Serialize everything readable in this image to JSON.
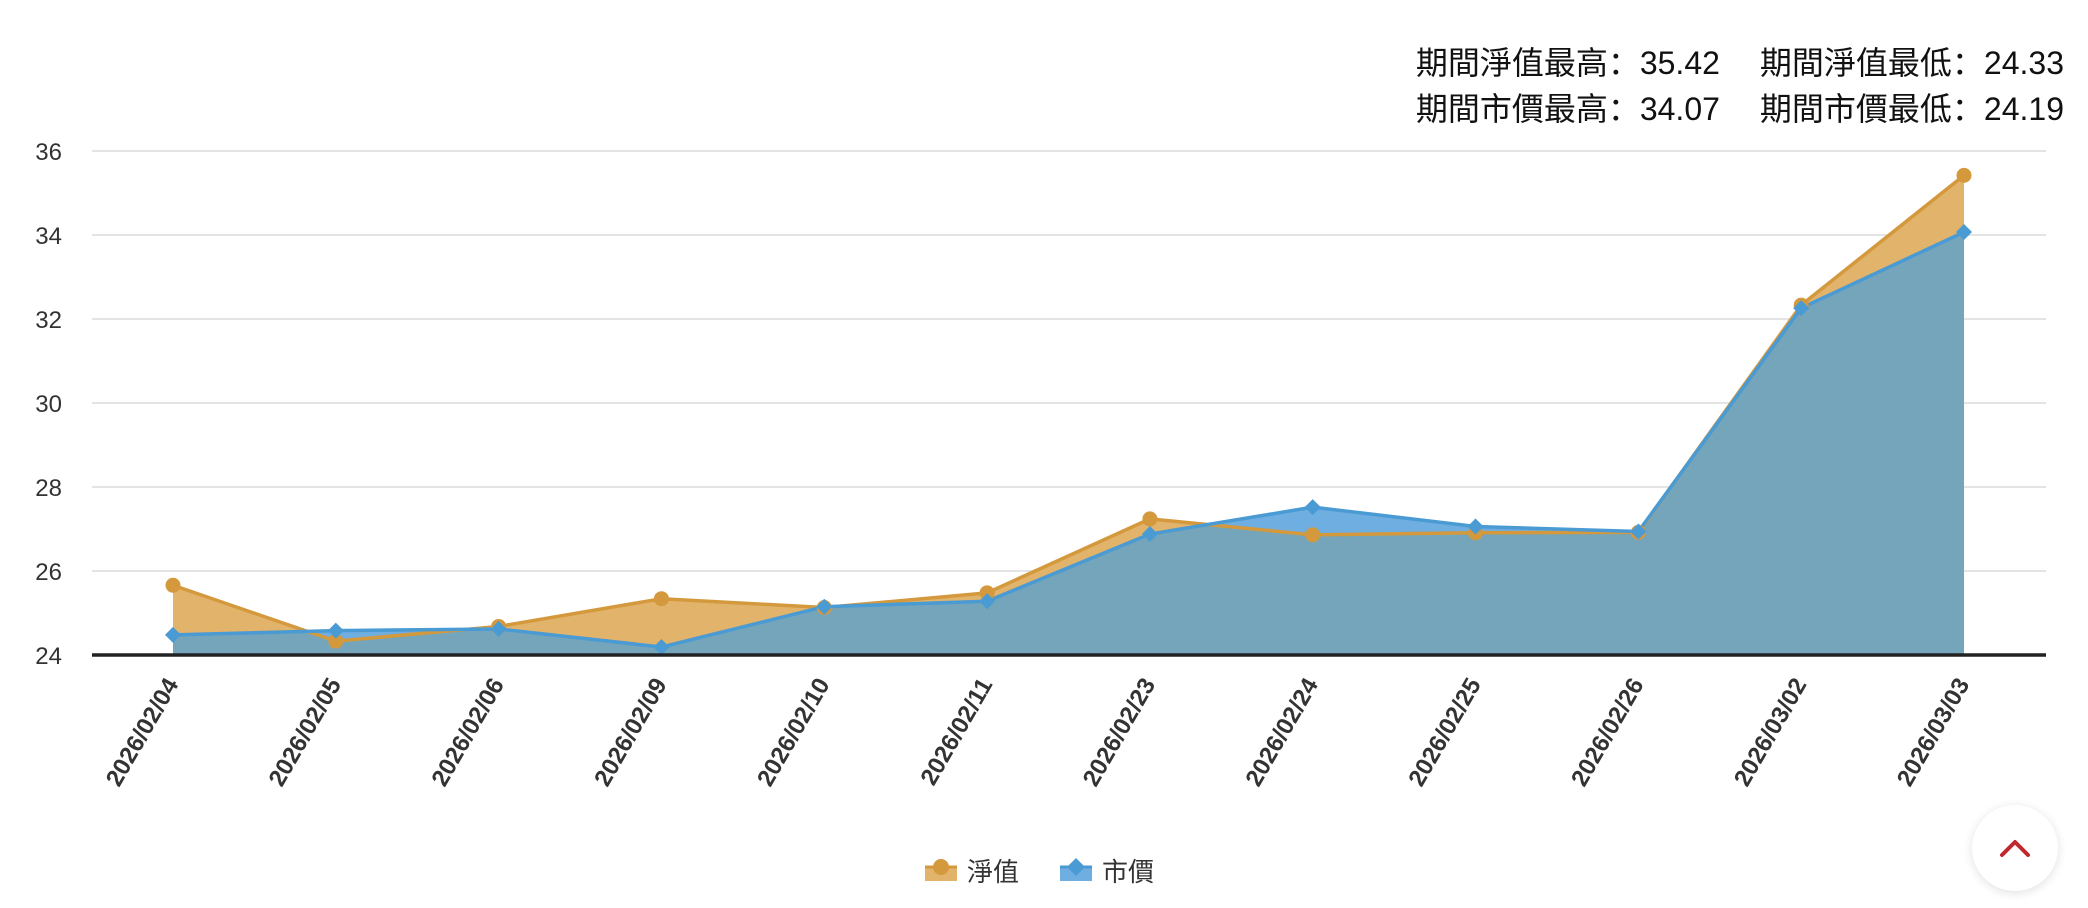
{
  "stats": {
    "nav_high_label": "期間淨值最高：",
    "nav_high_value": "35.42",
    "nav_low_label": "期間淨值最低：",
    "nav_low_value": "24.33",
    "price_high_label": "期間市價最高：",
    "price_high_value": "34.07",
    "price_low_label": "期間市價最低：",
    "price_low_value": "24.19"
  },
  "colors": {
    "nav_fill": "#e2b36a",
    "nav_line": "#d4993d",
    "price_fill": "#6faee0",
    "overlap_fill": "#74a5ba",
    "price_line": "#4a9ad4",
    "back_top_arrow": "#c0282d"
  },
  "icons": {
    "back_to_top": "chevron-up-icon"
  },
  "chart_data": {
    "type": "area",
    "x": [
      "2026/02/04",
      "2026/02/05",
      "2026/02/06",
      "2026/02/09",
      "2026/02/10",
      "2026/02/11",
      "2026/02/23",
      "2026/02/24",
      "2026/02/25",
      "2026/02/26",
      "2026/03/02",
      "2026/03/03"
    ],
    "series": [
      {
        "name": "淨值",
        "values": [
          25.66,
          24.33,
          24.68,
          25.34,
          25.13,
          25.48,
          27.24,
          26.86,
          26.91,
          26.92,
          32.33,
          35.42
        ]
      },
      {
        "name": "市價",
        "values": [
          24.48,
          24.58,
          24.62,
          24.19,
          25.15,
          25.28,
          26.88,
          27.52,
          27.06,
          26.94,
          32.26,
          34.07
        ]
      }
    ],
    "ylim": [
      24,
      36
    ],
    "yticks": [
      24,
      26,
      28,
      30,
      32,
      34,
      36
    ],
    "grid": true,
    "legend": "bottom-center"
  }
}
